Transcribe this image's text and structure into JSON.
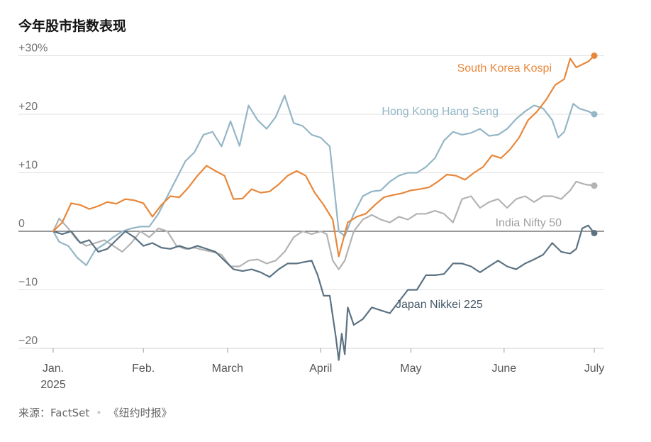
{
  "title": "今年股市指数表现",
  "source": {
    "prefix": "来源：FactSet",
    "separator": "•",
    "publisher": "《纽约时报》"
  },
  "chart_data": {
    "type": "line",
    "title": "今年股市指数表现",
    "xlabel": "",
    "ylabel": "",
    "x_unit": "days since Jan. 2, 2025",
    "ylim": [
      -22,
      31
    ],
    "y_ticks": [
      {
        "value": 30,
        "label": "+30%"
      },
      {
        "value": 20,
        "label": "+20"
      },
      {
        "value": 10,
        "label": "+10"
      },
      {
        "value": 0,
        "label": "0"
      },
      {
        "value": -10,
        "label": "−10"
      },
      {
        "value": -20,
        "label": "−20"
      }
    ],
    "x_ticks": [
      {
        "value": 0,
        "label": "Jan.",
        "sublabel": "2025"
      },
      {
        "value": 30,
        "label": "Feb."
      },
      {
        "value": 58,
        "label": "March"
      },
      {
        "value": 89,
        "label": "April"
      },
      {
        "value": 119,
        "label": "May"
      },
      {
        "value": 150,
        "label": "June"
      },
      {
        "value": 180,
        "label": "July"
      }
    ],
    "grid": true,
    "series": [
      {
        "name": "South Korea Kospi",
        "color": "#e8873a",
        "label_color": "#e8873a",
        "values": [
          [
            0,
            0
          ],
          [
            3,
            1.5
          ],
          [
            6,
            4.8
          ],
          [
            9,
            4.5
          ],
          [
            12,
            3.8
          ],
          [
            15,
            4.3
          ],
          [
            18,
            5
          ],
          [
            21,
            4.7
          ],
          [
            24,
            5.5
          ],
          [
            27,
            5.3
          ],
          [
            30,
            4.8
          ],
          [
            33,
            2.5
          ],
          [
            36,
            4.5
          ],
          [
            39,
            6
          ],
          [
            42,
            5.8
          ],
          [
            45,
            7.5
          ],
          [
            48,
            9.5
          ],
          [
            51,
            11.2
          ],
          [
            54,
            10.3
          ],
          [
            57,
            9.5
          ],
          [
            60,
            5.5
          ],
          [
            63,
            5.6
          ],
          [
            66,
            7.2
          ],
          [
            69,
            6.6
          ],
          [
            72,
            6.8
          ],
          [
            75,
            8
          ],
          [
            78,
            9.5
          ],
          [
            81,
            10.3
          ],
          [
            84,
            9.5
          ],
          [
            87,
            6.6
          ],
          [
            90,
            4.5
          ],
          [
            93,
            2
          ],
          [
            95,
            -4.3
          ],
          [
            98,
            1.5
          ],
          [
            101,
            2.5
          ],
          [
            104,
            3
          ],
          [
            107,
            4.5
          ],
          [
            110,
            5.8
          ],
          [
            113,
            6.2
          ],
          [
            116,
            6.5
          ],
          [
            119,
            7
          ],
          [
            122,
            7.2
          ],
          [
            125,
            7.5
          ],
          [
            128,
            8.5
          ],
          [
            131,
            9.7
          ],
          [
            134,
            9.5
          ],
          [
            137,
            8.8
          ],
          [
            140,
            10
          ],
          [
            143,
            11
          ],
          [
            146,
            13
          ],
          [
            149,
            12.5
          ],
          [
            152,
            14
          ],
          [
            155,
            16
          ],
          [
            158,
            19
          ],
          [
            161,
            20.5
          ],
          [
            164,
            22.5
          ],
          [
            167,
            25
          ],
          [
            170,
            26
          ],
          [
            172,
            29.5
          ],
          [
            174,
            28
          ],
          [
            176,
            28.5
          ],
          [
            178,
            29
          ],
          [
            180,
            30
          ]
        ],
        "end_label": "South Korea Kospi"
      },
      {
        "name": "Hong Kong Hang Seng",
        "color": "#94b6c6",
        "label_color": "#94b6c6",
        "values": [
          [
            0,
            0
          ],
          [
            2,
            -1.8
          ],
          [
            5,
            -2.5
          ],
          [
            8,
            -4.5
          ],
          [
            11,
            -5.8
          ],
          [
            14,
            -3.2
          ],
          [
            17,
            -2.2
          ],
          [
            20,
            -1
          ],
          [
            23,
            0
          ],
          [
            26,
            0.5
          ],
          [
            29,
            0.8
          ],
          [
            32,
            0.8
          ],
          [
            35,
            3
          ],
          [
            38,
            6
          ],
          [
            41,
            9
          ],
          [
            44,
            12
          ],
          [
            47,
            13.5
          ],
          [
            50,
            16.5
          ],
          [
            53,
            17
          ],
          [
            56,
            14.5
          ],
          [
            59,
            18.8
          ],
          [
            62,
            14.6
          ],
          [
            65,
            21.5
          ],
          [
            68,
            19
          ],
          [
            71,
            17.5
          ],
          [
            74,
            19.5
          ],
          [
            77,
            23.2
          ],
          [
            80,
            18.5
          ],
          [
            83,
            18
          ],
          [
            86,
            16.5
          ],
          [
            89,
            16
          ],
          [
            92,
            14.5
          ],
          [
            95,
            0
          ],
          [
            97,
            -0.8
          ],
          [
            100,
            3
          ],
          [
            103,
            6
          ],
          [
            106,
            6.8
          ],
          [
            109,
            7
          ],
          [
            112,
            8.5
          ],
          [
            115,
            9.5
          ],
          [
            118,
            10
          ],
          [
            121,
            10
          ],
          [
            124,
            11
          ],
          [
            127,
            12.5
          ],
          [
            130,
            15.5
          ],
          [
            133,
            17
          ],
          [
            136,
            16.5
          ],
          [
            139,
            16.8
          ],
          [
            142,
            17.5
          ],
          [
            145,
            16.3
          ],
          [
            148,
            16.5
          ],
          [
            151,
            17.5
          ],
          [
            154,
            19.2
          ],
          [
            157,
            20.5
          ],
          [
            160,
            21.5
          ],
          [
            163,
            21
          ],
          [
            166,
            19
          ],
          [
            168,
            16
          ],
          [
            170,
            17
          ],
          [
            173,
            21.8
          ],
          [
            175,
            21
          ],
          [
            178,
            20.5
          ],
          [
            180,
            20
          ]
        ],
        "end_label": "Hong Kong Hang Seng"
      },
      {
        "name": "India Nifty 50",
        "color": "#b3b3b3",
        "label_color": "#a0a0a0",
        "values": [
          [
            0,
            0
          ],
          [
            2,
            2.2
          ],
          [
            5,
            0.5
          ],
          [
            8,
            -1.5
          ],
          [
            11,
            -2.5
          ],
          [
            14,
            -2
          ],
          [
            17,
            -1.5
          ],
          [
            20,
            -2.5
          ],
          [
            23,
            -3.5
          ],
          [
            26,
            -2
          ],
          [
            29,
            0
          ],
          [
            32,
            -1
          ],
          [
            35,
            0.5
          ],
          [
            38,
            0
          ],
          [
            41,
            -2.5
          ],
          [
            44,
            -3
          ],
          [
            47,
            -2.8
          ],
          [
            50,
            -3.2
          ],
          [
            53,
            -3.5
          ],
          [
            56,
            -4
          ],
          [
            59,
            -6
          ],
          [
            62,
            -6
          ],
          [
            65,
            -5
          ],
          [
            68,
            -4.8
          ],
          [
            71,
            -5.5
          ],
          [
            74,
            -5
          ],
          [
            77,
            -3.5
          ],
          [
            80,
            -1
          ],
          [
            83,
            0
          ],
          [
            86,
            -0.5
          ],
          [
            89,
            0
          ],
          [
            91,
            -0.5
          ],
          [
            93,
            -5
          ],
          [
            95,
            -6.5
          ],
          [
            97,
            -5
          ],
          [
            100,
            0
          ],
          [
            103,
            2
          ],
          [
            106,
            2.8
          ],
          [
            109,
            2
          ],
          [
            112,
            1.5
          ],
          [
            115,
            2.5
          ],
          [
            118,
            2
          ],
          [
            121,
            3
          ],
          [
            124,
            3
          ],
          [
            127,
            3.5
          ],
          [
            130,
            3
          ],
          [
            133,
            1.5
          ],
          [
            136,
            5.5
          ],
          [
            139,
            6
          ],
          [
            142,
            4
          ],
          [
            145,
            5
          ],
          [
            148,
            5.5
          ],
          [
            151,
            4
          ],
          [
            154,
            5.5
          ],
          [
            157,
            6
          ],
          [
            160,
            5
          ],
          [
            163,
            6
          ],
          [
            166,
            6
          ],
          [
            169,
            5.5
          ],
          [
            172,
            7
          ],
          [
            174,
            8.5
          ],
          [
            177,
            8
          ],
          [
            180,
            7.8
          ]
        ],
        "end_label": "India Nifty 50"
      },
      {
        "name": "Japan Nikkei 225",
        "color": "#5b7282",
        "label_color": "#44596a",
        "values": [
          [
            0,
            0
          ],
          [
            3,
            -0.5
          ],
          [
            6,
            0
          ],
          [
            9,
            -2
          ],
          [
            12,
            -1.5
          ],
          [
            15,
            -3.5
          ],
          [
            18,
            -3
          ],
          [
            21,
            -1.5
          ],
          [
            24,
            0
          ],
          [
            27,
            -1
          ],
          [
            30,
            -2.5
          ],
          [
            33,
            -2
          ],
          [
            36,
            -2.8
          ],
          [
            39,
            -3
          ],
          [
            42,
            -2.5
          ],
          [
            45,
            -3
          ],
          [
            48,
            -2.5
          ],
          [
            51,
            -3
          ],
          [
            54,
            -3.5
          ],
          [
            57,
            -5
          ],
          [
            60,
            -6.5
          ],
          [
            63,
            -6.8
          ],
          [
            66,
            -6.5
          ],
          [
            69,
            -7
          ],
          [
            72,
            -7.8
          ],
          [
            75,
            -6.5
          ],
          [
            78,
            -5.5
          ],
          [
            81,
            -5.5
          ],
          [
            84,
            -5.2
          ],
          [
            86,
            -5
          ],
          [
            88,
            -7.5
          ],
          [
            90,
            -11
          ],
          [
            92,
            -11
          ],
          [
            94,
            -18
          ],
          [
            95,
            -22
          ],
          [
            96,
            -17.5
          ],
          [
            97,
            -21
          ],
          [
            98,
            -13
          ],
          [
            100,
            -16
          ],
          [
            103,
            -15
          ],
          [
            106,
            -13
          ],
          [
            109,
            -13.5
          ],
          [
            112,
            -14
          ],
          [
            115,
            -12
          ],
          [
            118,
            -10
          ],
          [
            121,
            -10
          ],
          [
            124,
            -7.5
          ],
          [
            127,
            -7.5
          ],
          [
            130,
            -7.3
          ],
          [
            133,
            -5.5
          ],
          [
            136,
            -5.5
          ],
          [
            139,
            -6
          ],
          [
            142,
            -7
          ],
          [
            145,
            -6
          ],
          [
            148,
            -5
          ],
          [
            151,
            -6
          ],
          [
            154,
            -6.5
          ],
          [
            157,
            -5.5
          ],
          [
            160,
            -4.8
          ],
          [
            163,
            -4
          ],
          [
            166,
            -2
          ],
          [
            169,
            -3.5
          ],
          [
            172,
            -3.8
          ],
          [
            174,
            -3
          ],
          [
            176,
            0.5
          ],
          [
            178,
            1
          ],
          [
            180,
            -0.3
          ]
        ],
        "end_label": "Japan Nikkei 225"
      }
    ]
  }
}
